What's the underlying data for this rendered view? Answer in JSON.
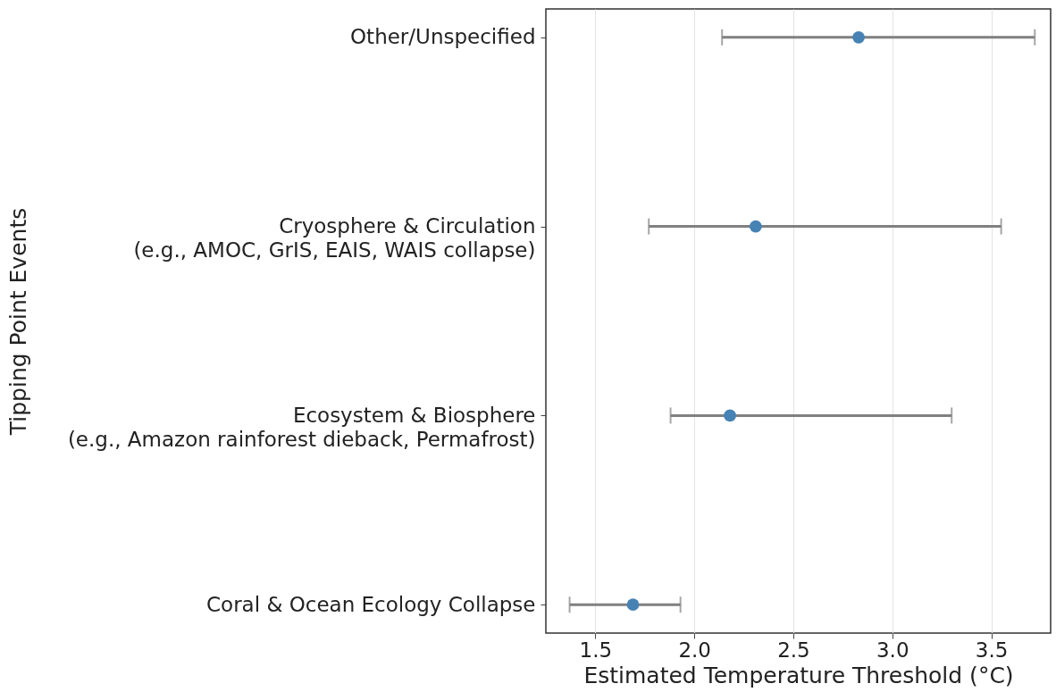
{
  "chart_data": {
    "type": "scatter",
    "orientation": "horizontal",
    "categories": [
      "Other/Unspecified",
      "Cryosphere & Circulation\n(e.g., AMOC, GrIS, EAIS, WAIS collapse)",
      "Ecosystem & Biosphere\n(e.g., Amazon rainforest dieback, Permafrost)",
      "Coral & Ocean Ecology Collapse"
    ],
    "values": [
      2.83,
      2.31,
      2.18,
      1.69
    ],
    "errors": [
      [
        2.14,
        3.72
      ],
      [
        1.77,
        3.55
      ],
      [
        1.88,
        3.3
      ],
      [
        1.37,
        1.93
      ]
    ],
    "color": "#4682b4",
    "xlim": [
      1.25,
      3.8
    ],
    "xticks": [
      1.5,
      {
        "value": 2,
        "label": "2.0"
      },
      2.5,
      {
        "value": 3,
        "label": "3.0"
      },
      3.5
    ],
    "xlabel": "Estimated Temperature Threshold (°C)",
    "ylabel": "Tipping Point Events",
    "grid": "x",
    "marker": "circle"
  }
}
